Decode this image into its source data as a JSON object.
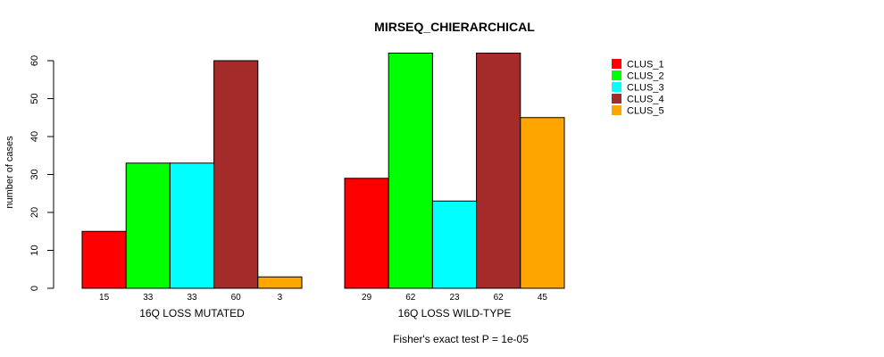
{
  "chart_data": {
    "type": "bar",
    "title": "MIRSEQ_CHIERARCHICAL",
    "ylabel": "number of cases",
    "ylim": [
      0,
      60
    ],
    "yticks": [
      0,
      10,
      20,
      30,
      40,
      50,
      60
    ],
    "categories": [
      "16Q LOSS MUTATED",
      "16Q LOSS WILD-TYPE"
    ],
    "series": [
      {
        "name": "CLUS_1",
        "color": "#ff0000",
        "values": [
          15,
          29
        ]
      },
      {
        "name": "CLUS_2",
        "color": "#00ff00",
        "values": [
          33,
          62
        ]
      },
      {
        "name": "CLUS_3",
        "color": "#00ffff",
        "values": [
          33,
          23
        ]
      },
      {
        "name": "CLUS_4",
        "color": "#a52a2a",
        "values": [
          60,
          62
        ]
      },
      {
        "name": "CLUS_5",
        "color": "#ffa500",
        "values": [
          3,
          45
        ]
      }
    ],
    "legend_position": "top-right",
    "grid": false,
    "footnote": "Fisher's exact test P = 1e-05"
  }
}
